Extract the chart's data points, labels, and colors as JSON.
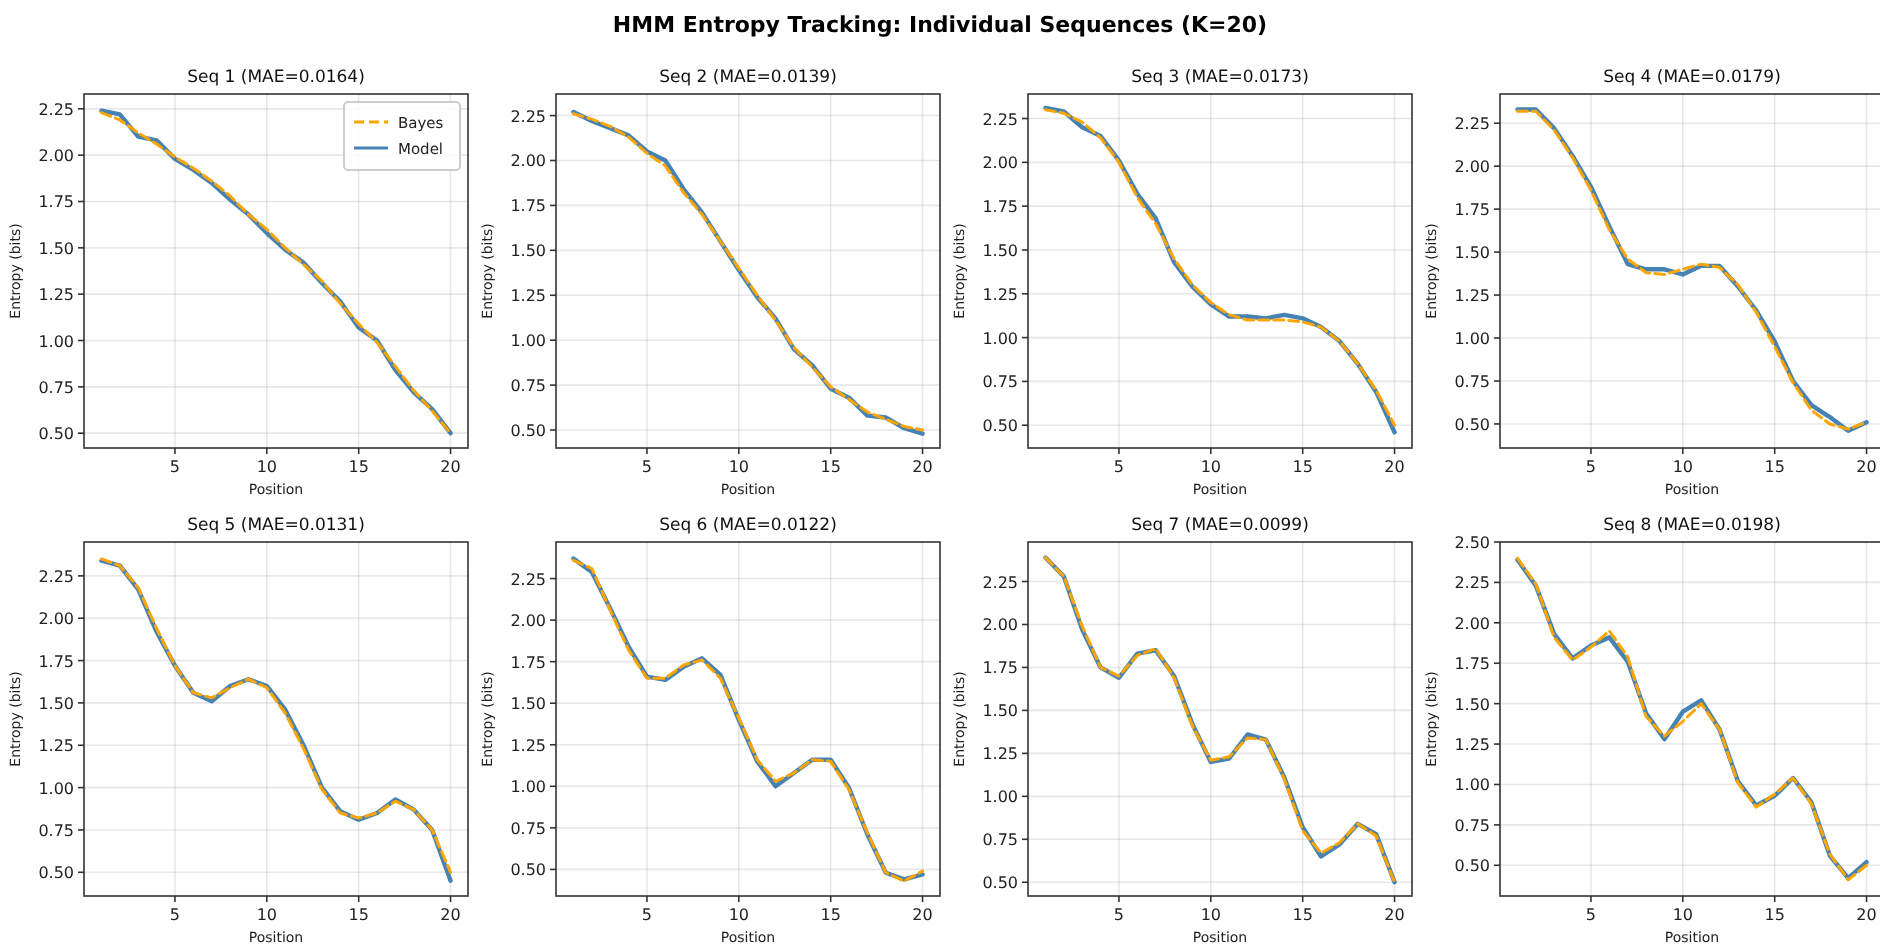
{
  "chart_data": [
    {
      "type": "line",
      "title": "Seq 1 (MAE=0.0164)",
      "xlabel": "Position",
      "ylabel": "Entropy (bits)",
      "annotations": [
        "HMM Entropy Tracking: Individual Sequences (K=20)"
      ],
      "x": [
        1,
        2,
        3,
        4,
        5,
        6,
        7,
        8,
        9,
        10,
        11,
        12,
        13,
        14,
        15,
        16,
        17,
        18,
        19,
        20
      ],
      "xlim": [
        0.05,
        20.95
      ],
      "xticks": [
        5,
        10,
        15,
        20
      ],
      "ylim": [
        0.42,
        2.33
      ],
      "yticks": [
        {
          "value": 0.5,
          "label": "0.50"
        },
        {
          "value": 0.75,
          "label": "0.75"
        },
        {
          "value": 1,
          "label": "1.00"
        },
        {
          "value": 1.25,
          "label": "1.25"
        },
        {
          "value": 1.5,
          "label": "1.50"
        },
        {
          "value": 1.75,
          "label": "1.75"
        },
        {
          "value": 2,
          "label": "2.00"
        },
        {
          "value": 2.25,
          "label": "2.25"
        }
      ],
      "grid": true,
      "legend": "top right",
      "series": [
        {
          "name": "Bayes",
          "color": "#ffa500",
          "line_style": "dashed",
          "values": [
            2.23,
            2.19,
            2.12,
            2.06,
            1.99,
            1.93,
            1.86,
            1.78,
            1.68,
            1.6,
            1.5,
            1.41,
            1.32,
            1.2,
            1.09,
            0.99,
            0.86,
            0.73,
            0.62,
            0.5
          ]
        },
        {
          "name": "Model",
          "color": "#4682b4",
          "line_style": "solid",
          "values": [
            2.24,
            2.22,
            2.1,
            2.08,
            1.98,
            1.92,
            1.85,
            1.76,
            1.68,
            1.58,
            1.49,
            1.42,
            1.31,
            1.21,
            1.07,
            1.0,
            0.84,
            0.72,
            0.63,
            0.5
          ]
        }
      ]
    },
    {
      "type": "line",
      "title": "Seq 2 (MAE=0.0139)",
      "xlabel": "Position",
      "ylabel": "Entropy (bits)",
      "x": [
        1,
        2,
        3,
        4,
        5,
        6,
        7,
        8,
        9,
        10,
        11,
        12,
        13,
        14,
        15,
        16,
        17,
        18,
        19,
        20
      ],
      "xlim": [
        0.05,
        20.95
      ],
      "xticks": [
        5,
        10,
        15,
        20
      ],
      "ylim": [
        0.4,
        2.37
      ],
      "yticks": [
        {
          "value": 0.5,
          "label": "0.50"
        },
        {
          "value": 0.75,
          "label": "0.75"
        },
        {
          "value": 1,
          "label": "1.00"
        },
        {
          "value": 1.25,
          "label": "1.25"
        },
        {
          "value": 1.5,
          "label": "1.50"
        },
        {
          "value": 1.75,
          "label": "1.75"
        },
        {
          "value": 2,
          "label": "2.00"
        },
        {
          "value": 2.25,
          "label": "2.25"
        }
      ],
      "grid": true,
      "series": [
        {
          "color": "#ffa500",
          "line_style": "dashed",
          "values": [
            2.26,
            2.23,
            2.19,
            2.13,
            2.04,
            1.97,
            1.82,
            1.7,
            1.55,
            1.4,
            1.25,
            1.11,
            0.96,
            0.85,
            0.74,
            0.67,
            0.6,
            0.56,
            0.52,
            0.5
          ]
        },
        {
          "color": "#4682b4",
          "line_style": "solid",
          "values": [
            2.27,
            2.22,
            2.18,
            2.14,
            2.05,
            2.0,
            1.84,
            1.71,
            1.55,
            1.39,
            1.24,
            1.12,
            0.95,
            0.86,
            0.73,
            0.68,
            0.58,
            0.57,
            0.51,
            0.48
          ]
        }
      ]
    },
    {
      "type": "line",
      "title": "Seq 3 (MAE=0.0173)",
      "xlabel": "Position",
      "ylabel": "Entropy (bits)",
      "x": [
        1,
        2,
        3,
        4,
        5,
        6,
        7,
        8,
        9,
        10,
        11,
        12,
        13,
        14,
        15,
        16,
        17,
        18,
        19,
        20
      ],
      "xlim": [
        0.05,
        20.95
      ],
      "xticks": [
        5,
        10,
        15,
        20
      ],
      "ylim": [
        0.37,
        2.39
      ],
      "yticks": [
        {
          "value": 0.5,
          "label": "0.50"
        },
        {
          "value": 0.75,
          "label": "0.75"
        },
        {
          "value": 1,
          "label": "1.00"
        },
        {
          "value": 1.25,
          "label": "1.25"
        },
        {
          "value": 1.5,
          "label": "1.50"
        },
        {
          "value": 1.75,
          "label": "1.75"
        },
        {
          "value": 2,
          "label": "2.00"
        },
        {
          "value": 2.25,
          "label": "2.25"
        }
      ],
      "grid": true,
      "series": [
        {
          "color": "#ffa500",
          "line_style": "dashed",
          "values": [
            2.3,
            2.28,
            2.23,
            2.14,
            2.0,
            1.8,
            1.65,
            1.45,
            1.3,
            1.2,
            1.13,
            1.1,
            1.1,
            1.1,
            1.09,
            1.06,
            0.98,
            0.85,
            0.7,
            0.5
          ]
        },
        {
          "color": "#4682b4",
          "line_style": "solid",
          "values": [
            2.31,
            2.29,
            2.2,
            2.15,
            2.01,
            1.82,
            1.68,
            1.43,
            1.29,
            1.19,
            1.12,
            1.12,
            1.11,
            1.13,
            1.11,
            1.06,
            0.98,
            0.85,
            0.69,
            0.46
          ]
        }
      ]
    },
    {
      "type": "line",
      "title": "Seq 4 (MAE=0.0179)",
      "xlabel": "Position",
      "ylabel": "Entropy (bits)",
      "x": [
        1,
        2,
        3,
        4,
        5,
        6,
        7,
        8,
        9,
        10,
        11,
        12,
        13,
        14,
        15,
        16,
        17,
        18,
        19,
        20
      ],
      "xlim": [
        0.05,
        20.95
      ],
      "xticks": [
        5,
        10,
        15,
        20
      ],
      "ylim": [
        0.36,
        2.42
      ],
      "yticks": [
        {
          "value": 0.5,
          "label": "0.50"
        },
        {
          "value": 0.75,
          "label": "0.75"
        },
        {
          "value": 1,
          "label": "1.00"
        },
        {
          "value": 1.25,
          "label": "1.25"
        },
        {
          "value": 1.5,
          "label": "1.50"
        },
        {
          "value": 1.75,
          "label": "1.75"
        },
        {
          "value": 2,
          "label": "2.00"
        },
        {
          "value": 2.25,
          "label": "2.25"
        }
      ],
      "grid": true,
      "series": [
        {
          "color": "#ffa500",
          "line_style": "dashed",
          "values": [
            2.32,
            2.32,
            2.21,
            2.05,
            1.86,
            1.63,
            1.46,
            1.38,
            1.37,
            1.4,
            1.43,
            1.41,
            1.31,
            1.15,
            0.95,
            0.74,
            0.58,
            0.5,
            0.47,
            0.51
          ]
        },
        {
          "color": "#4682b4",
          "line_style": "solid",
          "values": [
            2.33,
            2.33,
            2.22,
            2.06,
            1.88,
            1.65,
            1.43,
            1.4,
            1.4,
            1.37,
            1.42,
            1.42,
            1.3,
            1.16,
            0.98,
            0.75,
            0.61,
            0.54,
            0.46,
            0.51
          ]
        }
      ]
    },
    {
      "type": "line",
      "title": "Seq 5 (MAE=0.0131)",
      "xlabel": "Position",
      "ylabel": "Entropy (bits)",
      "x": [
        1,
        2,
        3,
        4,
        5,
        6,
        7,
        8,
        9,
        10,
        11,
        12,
        13,
        14,
        15,
        16,
        17,
        18,
        19,
        20
      ],
      "xlim": [
        0.05,
        20.95
      ],
      "xticks": [
        5,
        10,
        15,
        20
      ],
      "ylim": [
        0.36,
        2.45
      ],
      "yticks": [
        {
          "value": 0.5,
          "label": "0.50"
        },
        {
          "value": 0.75,
          "label": "0.75"
        },
        {
          "value": 1,
          "label": "1.00"
        },
        {
          "value": 1.25,
          "label": "1.25"
        },
        {
          "value": 1.5,
          "label": "1.50"
        },
        {
          "value": 1.75,
          "label": "1.75"
        },
        {
          "value": 2,
          "label": "2.00"
        },
        {
          "value": 2.25,
          "label": "2.25"
        }
      ],
      "grid": true,
      "series": [
        {
          "color": "#ffa500",
          "line_style": "dashed",
          "values": [
            2.35,
            2.31,
            2.18,
            1.94,
            1.72,
            1.56,
            1.53,
            1.59,
            1.64,
            1.59,
            1.44,
            1.23,
            0.99,
            0.85,
            0.82,
            0.85,
            0.92,
            0.87,
            0.75,
            0.5
          ]
        },
        {
          "color": "#4682b4",
          "line_style": "solid",
          "values": [
            2.34,
            2.31,
            2.17,
            1.92,
            1.72,
            1.56,
            1.51,
            1.6,
            1.64,
            1.6,
            1.46,
            1.25,
            1.0,
            0.86,
            0.81,
            0.85,
            0.93,
            0.87,
            0.75,
            0.45
          ]
        }
      ]
    },
    {
      "type": "line",
      "title": "Seq 6 (MAE=0.0122)",
      "xlabel": "Position",
      "ylabel": "Entropy (bits)",
      "x": [
        1,
        2,
        3,
        4,
        5,
        6,
        7,
        8,
        9,
        10,
        11,
        12,
        13,
        14,
        15,
        16,
        17,
        18,
        19,
        20
      ],
      "xlim": [
        0.05,
        20.95
      ],
      "xticks": [
        5,
        10,
        15,
        20
      ],
      "ylim": [
        0.34,
        2.47
      ],
      "yticks": [
        {
          "value": 0.5,
          "label": "0.50"
        },
        {
          "value": 0.75,
          "label": "0.75"
        },
        {
          "value": 1,
          "label": "1.00"
        },
        {
          "value": 1.25,
          "label": "1.25"
        },
        {
          "value": 1.5,
          "label": "1.50"
        },
        {
          "value": 1.75,
          "label": "1.75"
        },
        {
          "value": 2,
          "label": "2.00"
        },
        {
          "value": 2.25,
          "label": "2.25"
        }
      ],
      "grid": true,
      "series": [
        {
          "color": "#ffa500",
          "line_style": "dashed",
          "values": [
            2.36,
            2.31,
            2.06,
            1.82,
            1.65,
            1.65,
            1.73,
            1.76,
            1.65,
            1.41,
            1.16,
            1.03,
            1.08,
            1.16,
            1.15,
            0.98,
            0.72,
            0.48,
            0.43,
            0.49
          ]
        },
        {
          "color": "#4682b4",
          "line_style": "solid",
          "values": [
            2.37,
            2.29,
            2.07,
            1.84,
            1.66,
            1.64,
            1.72,
            1.77,
            1.67,
            1.4,
            1.15,
            1.0,
            1.08,
            1.16,
            1.16,
            0.99,
            0.71,
            0.48,
            0.44,
            0.47
          ]
        }
      ]
    },
    {
      "type": "line",
      "title": "Seq 7 (MAE=0.0099)",
      "xlabel": "Position",
      "ylabel": "Entropy (bits)",
      "x": [
        1,
        2,
        3,
        4,
        5,
        6,
        7,
        8,
        9,
        10,
        11,
        12,
        13,
        14,
        15,
        16,
        17,
        18,
        19,
        20
      ],
      "xlim": [
        0.05,
        20.95
      ],
      "xticks": [
        5,
        10,
        15,
        20
      ],
      "ylim": [
        0.42,
        2.48
      ],
      "yticks": [
        {
          "value": 0.5,
          "label": "0.50"
        },
        {
          "value": 0.75,
          "label": "0.75"
        },
        {
          "value": 1,
          "label": "1.00"
        },
        {
          "value": 1.25,
          "label": "1.25"
        },
        {
          "value": 1.5,
          "label": "1.50"
        },
        {
          "value": 1.75,
          "label": "1.75"
        },
        {
          "value": 2,
          "label": "2.00"
        },
        {
          "value": 2.25,
          "label": "2.25"
        }
      ],
      "grid": true,
      "series": [
        {
          "color": "#ffa500",
          "line_style": "dashed",
          "values": [
            2.39,
            2.28,
            1.99,
            1.75,
            1.7,
            1.82,
            1.86,
            1.69,
            1.41,
            1.21,
            1.23,
            1.34,
            1.33,
            1.1,
            0.8,
            0.67,
            0.73,
            0.84,
            0.77,
            0.5
          ]
        },
        {
          "color": "#4682b4",
          "line_style": "solid",
          "values": [
            2.39,
            2.28,
            1.97,
            1.75,
            1.69,
            1.83,
            1.85,
            1.7,
            1.42,
            1.2,
            1.22,
            1.36,
            1.33,
            1.11,
            0.82,
            0.65,
            0.72,
            0.84,
            0.78,
            0.5
          ]
        }
      ]
    },
    {
      "type": "line",
      "title": "Seq 8 (MAE=0.0198)",
      "xlabel": "Position",
      "ylabel": "Entropy (bits)",
      "x": [
        1,
        2,
        3,
        4,
        5,
        6,
        7,
        8,
        9,
        10,
        11,
        12,
        13,
        14,
        15,
        16,
        17,
        18,
        19,
        20
      ],
      "xlim": [
        0.05,
        20.95
      ],
      "xticks": [
        5,
        10,
        15,
        20
      ],
      "ylim": [
        0.31,
        2.5
      ],
      "yticks": [
        {
          "value": 0.5,
          "label": "0.50"
        },
        {
          "value": 0.75,
          "label": "0.75"
        },
        {
          "value": 1,
          "label": "1.00"
        },
        {
          "value": 1.25,
          "label": "1.25"
        },
        {
          "value": 1.5,
          "label": "1.50"
        },
        {
          "value": 1.75,
          "label": "1.75"
        },
        {
          "value": 2,
          "label": "2.00"
        },
        {
          "value": 2.25,
          "label": "2.25"
        },
        {
          "value": 2.5,
          "label": "2.50"
        }
      ],
      "grid": true,
      "series": [
        {
          "color": "#ffa500",
          "line_style": "dashed",
          "values": [
            2.4,
            2.24,
            1.91,
            1.77,
            1.85,
            1.95,
            1.79,
            1.42,
            1.3,
            1.39,
            1.5,
            1.34,
            1.01,
            0.86,
            0.94,
            1.04,
            0.88,
            0.57,
            0.41,
            0.5
          ]
        },
        {
          "color": "#4682b4",
          "line_style": "solid",
          "values": [
            2.39,
            2.23,
            1.93,
            1.78,
            1.86,
            1.91,
            1.76,
            1.44,
            1.28,
            1.45,
            1.52,
            1.34,
            1.02,
            0.87,
            0.93,
            1.04,
            0.89,
            0.56,
            0.42,
            0.52
          ]
        }
      ]
    }
  ]
}
